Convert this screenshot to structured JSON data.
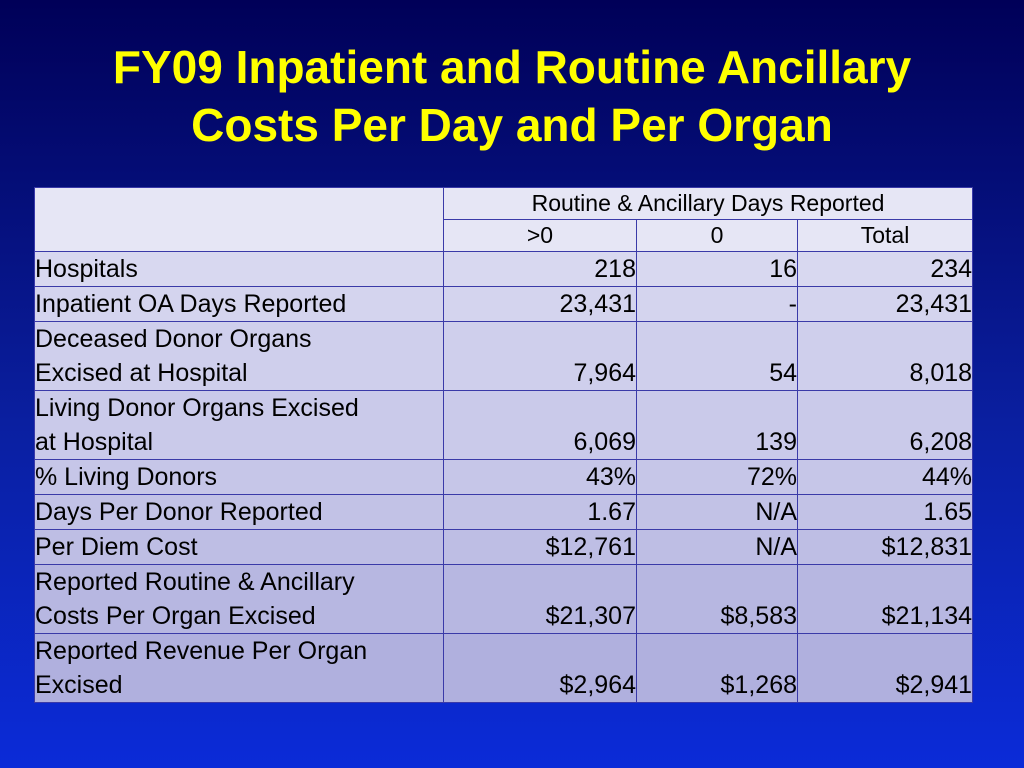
{
  "title": {
    "line1": "FY09 Inpatient and Routine Ancillary",
    "line2": "Costs Per Day and Per Organ"
  },
  "table": {
    "group_header": "Routine & Ancillary Days Reported",
    "columns": [
      ">0",
      "0",
      "Total"
    ],
    "rows": [
      {
        "label": "Hospitals",
        "values": [
          "218",
          "16",
          "234"
        ]
      },
      {
        "label": "Inpatient OA Days Reported",
        "values": [
          "23,431",
          "-",
          "23,431"
        ]
      },
      {
        "label": "Deceased Donor Organs Excised at Hospital",
        "values": [
          "7,964",
          "54",
          "8,018"
        ]
      },
      {
        "label": "Living Donor Organs Excised at Hospital",
        "values": [
          "6,069",
          "139",
          "6,208"
        ]
      },
      {
        "label": "% Living Donors",
        "values": [
          "43%",
          "72%",
          "44%"
        ]
      },
      {
        "label": "Days Per Donor Reported",
        "values": [
          "1.67",
          "N/A",
          "1.65"
        ]
      },
      {
        "label": "Per Diem Cost",
        "values": [
          "$12,761",
          "N/A",
          "$12,831"
        ]
      },
      {
        "label": "Reported Routine & Ancillary Costs Per Organ Excised",
        "values": [
          "$21,307",
          "$8,583",
          "$21,134"
        ]
      },
      {
        "label": "Reported Revenue Per Organ Excised",
        "values": [
          "$2,964",
          "$1,268",
          "$2,941"
        ]
      }
    ]
  }
}
